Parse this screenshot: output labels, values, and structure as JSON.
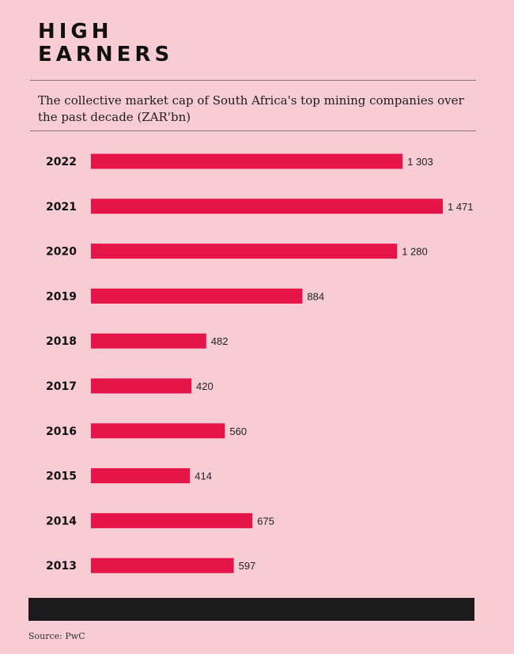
{
  "header": {
    "title_line1": "HIGH",
    "title_line2": "EARNERS",
    "subtitle": "The collective market cap of South Africa's top mining companies over the past decade (ZAR'bn)"
  },
  "footer": {
    "source": "Source: PwC"
  },
  "colors": {
    "bar": "#e5154a",
    "background": "#f8ccd4",
    "footer_bar": "#1b1b1b"
  },
  "chart_data": {
    "type": "bar",
    "orientation": "horizontal",
    "title": "HIGH EARNERS",
    "subtitle": "The collective market cap of South Africa's top mining companies over the past decade (ZAR'bn)",
    "categories": [
      "2022",
      "2021",
      "2020",
      "2019",
      "2018",
      "2017",
      "2016",
      "2015",
      "2014",
      "2013"
    ],
    "values": [
      1303,
      1471,
      1280,
      884,
      482,
      420,
      560,
      414,
      675,
      597
    ],
    "value_labels": [
      "1 303",
      "1 471",
      "1 280",
      "884",
      "482",
      "420",
      "560",
      "414",
      "675",
      "597"
    ],
    "xlabel": "",
    "ylabel": "",
    "xlim": [
      0,
      1471
    ],
    "grid": false,
    "legend": "none"
  }
}
